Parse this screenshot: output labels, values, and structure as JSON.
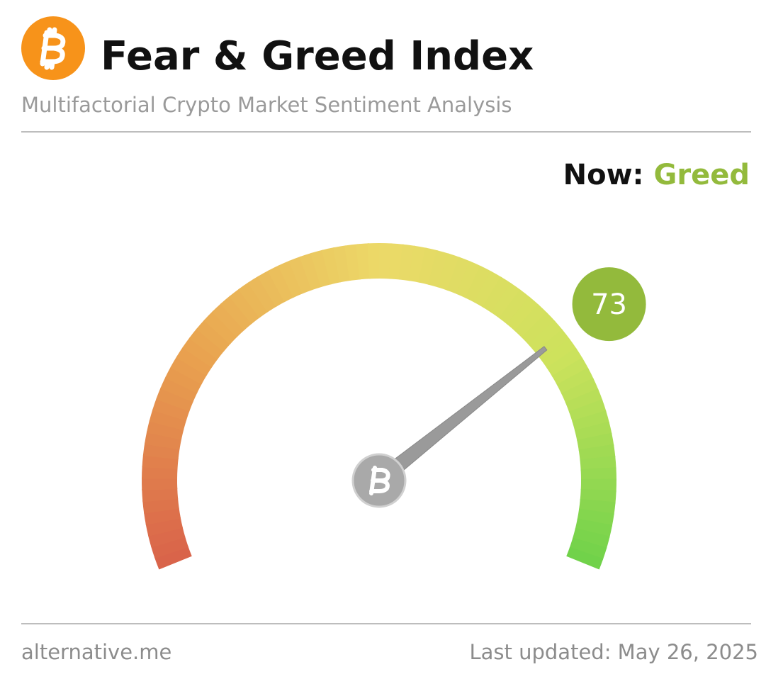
{
  "chart_data": {
    "type": "gauge",
    "title": "Fear & Greed Index",
    "subtitle": "Multifactorial Crypto Market Sentiment Analysis",
    "now_label": "Now:",
    "classification": "Greed",
    "value": 73,
    "ylim": [
      0,
      100
    ],
    "color": "#93ba3c",
    "source": "alternative.me",
    "updated": "Last updated: May 26, 2025"
  }
}
